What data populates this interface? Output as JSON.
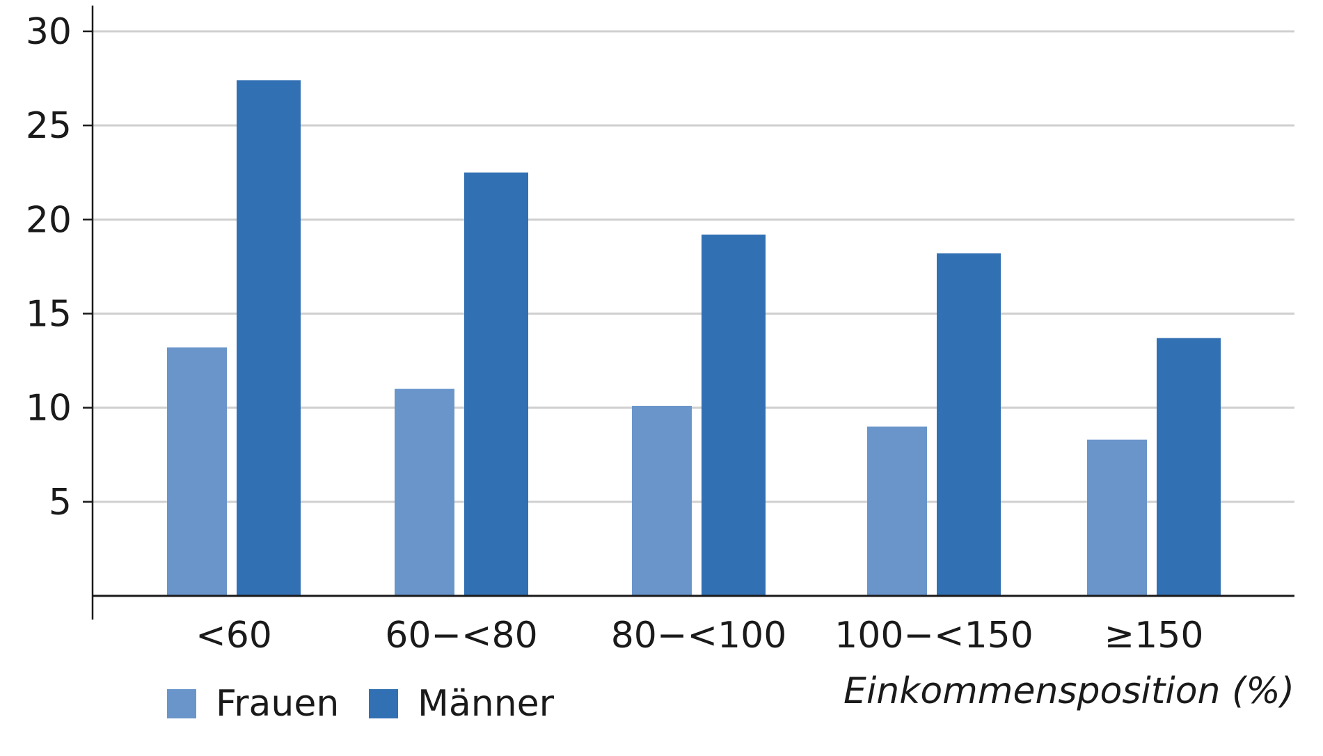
{
  "chart_data": {
    "type": "bar",
    "categories": [
      "<60",
      "60−<80",
      "80−<100",
      "100−<150",
      "≥150"
    ],
    "series": [
      {
        "name": "Frauen",
        "values": [
          13.2,
          11.0,
          10.1,
          9.0,
          8.3
        ],
        "color": "#6a95ca"
      },
      {
        "name": "Männer",
        "values": [
          27.4,
          22.5,
          19.2,
          18.2,
          13.7
        ],
        "color": "#3270b4"
      }
    ],
    "xlabel": "Einkommensposition (%)",
    "ylabel": "",
    "ylim": [
      0,
      30
    ],
    "yticks": [
      5,
      10,
      15,
      20,
      25,
      30
    ],
    "grid": true,
    "legend_position": "bottom-left"
  }
}
